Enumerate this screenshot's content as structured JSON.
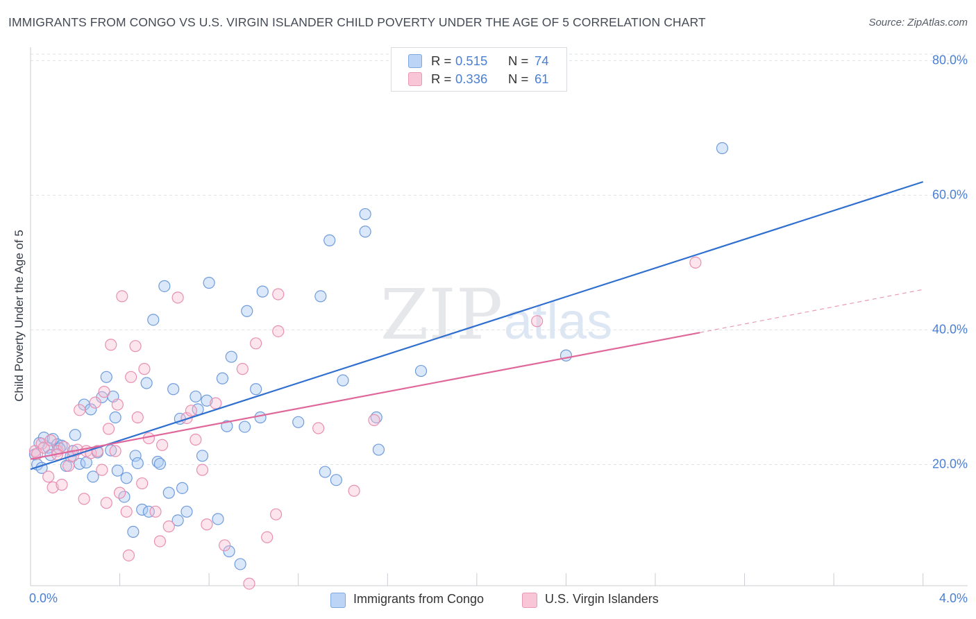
{
  "title": "IMMIGRANTS FROM CONGO VS U.S. VIRGIN ISLANDER CHILD POVERTY UNDER THE AGE OF 5 CORRELATION CHART",
  "source": "Source: ZipAtlas.com",
  "colors": {
    "blue": "#4a7fd4",
    "pink": "#e06a98",
    "blue_fill": "#aecbf2",
    "pink_fill": "#f7bed1"
  },
  "legend_top": [
    {
      "r_label": "R =",
      "r_value": "0.515",
      "n_label": "N =",
      "n_value": "74"
    },
    {
      "r_label": "R =",
      "r_value": "0.336",
      "n_label": "N =",
      "n_value": "61"
    }
  ],
  "legend_bottom": [
    "Immigrants from Congo",
    "U.S. Virgin Islanders"
  ],
  "chart_data": {
    "type": "scatter",
    "title": "IMMIGRANTS FROM CONGO VS U.S. VIRGIN ISLANDER CHILD POVERTY UNDER THE AGE OF 5 CORRELATION CHART",
    "xlabel": "",
    "ylabel": "Child Poverty Under the Age of 5",
    "xlim": [
      0,
      4.2
    ],
    "ylim": [
      2,
      82
    ],
    "x_ticks": [
      0,
      4.0
    ],
    "x_tick_labels": [
      "0.0%",
      "4.0%"
    ],
    "y_ticks": [
      20,
      40,
      60,
      80
    ],
    "y_tick_labels": [
      "20.0%",
      "40.0%",
      "60.0%",
      "80.0%"
    ],
    "series": [
      {
        "name": "Immigrants from Congo",
        "R": 0.515,
        "N": 74,
        "trend": {
          "x0": 0.0,
          "y0": 19.3,
          "x1": 4.0,
          "y1": 62.0
        },
        "points": [
          [
            0.02,
            21.5
          ],
          [
            0.03,
            20.0
          ],
          [
            0.04,
            23.2
          ],
          [
            0.06,
            24.0
          ],
          [
            0.08,
            22.5
          ],
          [
            0.1,
            23.8
          ],
          [
            0.12,
            23.0
          ],
          [
            0.14,
            22.8
          ],
          [
            0.16,
            19.8
          ],
          [
            0.18,
            21.2
          ],
          [
            0.2,
            24.4
          ],
          [
            0.22,
            20.1
          ],
          [
            0.24,
            28.9
          ],
          [
            0.27,
            28.2
          ],
          [
            0.3,
            21.8
          ],
          [
            0.32,
            30.0
          ],
          [
            0.34,
            33.0
          ],
          [
            0.36,
            22.1
          ],
          [
            0.37,
            30.1
          ],
          [
            0.38,
            27.0
          ],
          [
            0.39,
            19.1
          ],
          [
            0.42,
            15.2
          ],
          [
            0.43,
            18.0
          ],
          [
            0.46,
            10.0
          ],
          [
            0.47,
            21.3
          ],
          [
            0.48,
            20.2
          ],
          [
            0.5,
            13.3
          ],
          [
            0.52,
            32.1
          ],
          [
            0.53,
            13.0
          ],
          [
            0.55,
            41.5
          ],
          [
            0.57,
            20.4
          ],
          [
            0.58,
            20.1
          ],
          [
            0.6,
            46.5
          ],
          [
            0.62,
            15.8
          ],
          [
            0.64,
            31.2
          ],
          [
            0.66,
            11.7
          ],
          [
            0.67,
            26.8
          ],
          [
            0.68,
            16.5
          ],
          [
            0.7,
            13.0
          ],
          [
            0.74,
            30.1
          ],
          [
            0.75,
            28.2
          ],
          [
            0.77,
            21.3
          ],
          [
            0.79,
            29.5
          ],
          [
            0.8,
            47.0
          ],
          [
            0.84,
            11.9
          ],
          [
            0.86,
            32.8
          ],
          [
            0.88,
            25.7
          ],
          [
            0.89,
            7.1
          ],
          [
            0.9,
            36.0
          ],
          [
            0.94,
            5.2
          ],
          [
            0.96,
            25.6
          ],
          [
            0.97,
            42.8
          ],
          [
            1.01,
            31.2
          ],
          [
            1.03,
            27.0
          ],
          [
            1.04,
            45.7
          ],
          [
            1.2,
            26.3
          ],
          [
            1.3,
            45.0
          ],
          [
            1.32,
            18.9
          ],
          [
            1.34,
            53.3
          ],
          [
            1.37,
            17.7
          ],
          [
            1.4,
            32.5
          ],
          [
            1.5,
            57.2
          ],
          [
            1.5,
            54.6
          ],
          [
            1.55,
            27.0
          ],
          [
            1.56,
            22.2
          ],
          [
            1.75,
            33.9
          ],
          [
            2.4,
            36.2
          ],
          [
            3.1,
            67.0
          ],
          [
            0.05,
            19.5
          ],
          [
            0.09,
            21.4
          ],
          [
            0.13,
            22.4
          ],
          [
            0.19,
            22.0
          ],
          [
            0.25,
            20.3
          ],
          [
            0.28,
            18.2
          ]
        ]
      },
      {
        "name": "U.S. Virgin Islanders",
        "R": 0.336,
        "N": 61,
        "trend": {
          "x0": 0.0,
          "y0": 20.8,
          "x1": 3.0,
          "y1": 39.6
        },
        "trend_dashed": {
          "x0": 3.0,
          "y0": 39.6,
          "x1": 4.0,
          "y1": 46.0
        },
        "points": [
          [
            0.02,
            22.0
          ],
          [
            0.03,
            21.6
          ],
          [
            0.05,
            23.1
          ],
          [
            0.06,
            22.5
          ],
          [
            0.08,
            18.2
          ],
          [
            0.09,
            23.6
          ],
          [
            0.1,
            16.6
          ],
          [
            0.12,
            22.0
          ],
          [
            0.14,
            17.0
          ],
          [
            0.15,
            22.6
          ],
          [
            0.17,
            19.8
          ],
          [
            0.19,
            21.3
          ],
          [
            0.21,
            22.2
          ],
          [
            0.22,
            28.1
          ],
          [
            0.24,
            14.9
          ],
          [
            0.25,
            22.0
          ],
          [
            0.27,
            21.7
          ],
          [
            0.29,
            29.2
          ],
          [
            0.3,
            22.0
          ],
          [
            0.32,
            19.2
          ],
          [
            0.33,
            30.8
          ],
          [
            0.34,
            14.3
          ],
          [
            0.35,
            25.3
          ],
          [
            0.36,
            37.8
          ],
          [
            0.38,
            22.0
          ],
          [
            0.39,
            28.9
          ],
          [
            0.4,
            15.8
          ],
          [
            0.41,
            45.0
          ],
          [
            0.43,
            13.0
          ],
          [
            0.44,
            6.5
          ],
          [
            0.45,
            33.0
          ],
          [
            0.47,
            37.6
          ],
          [
            0.48,
            27.0
          ],
          [
            0.5,
            17.2
          ],
          [
            0.51,
            34.2
          ],
          [
            0.53,
            23.9
          ],
          [
            0.56,
            13.0
          ],
          [
            0.58,
            8.6
          ],
          [
            0.59,
            22.9
          ],
          [
            0.62,
            10.8
          ],
          [
            0.66,
            44.8
          ],
          [
            0.7,
            26.9
          ],
          [
            0.72,
            28.0
          ],
          [
            0.74,
            23.7
          ],
          [
            0.77,
            19.2
          ],
          [
            0.79,
            11.1
          ],
          [
            0.83,
            29.1
          ],
          [
            0.87,
            8.0
          ],
          [
            0.95,
            34.2
          ],
          [
            0.98,
            2.3
          ],
          [
            1.01,
            38.0
          ],
          [
            1.06,
            9.2
          ],
          [
            1.1,
            12.6
          ],
          [
            1.11,
            45.3
          ],
          [
            1.11,
            39.8
          ],
          [
            1.29,
            25.4
          ],
          [
            1.45,
            16.1
          ],
          [
            1.54,
            26.6
          ],
          [
            2.27,
            41.3
          ],
          [
            2.98,
            50.0
          ],
          [
            0.12,
            21.5
          ]
        ]
      }
    ],
    "grid": true,
    "legend_placement": "top-center",
    "watermark": "ZIPatlas"
  }
}
